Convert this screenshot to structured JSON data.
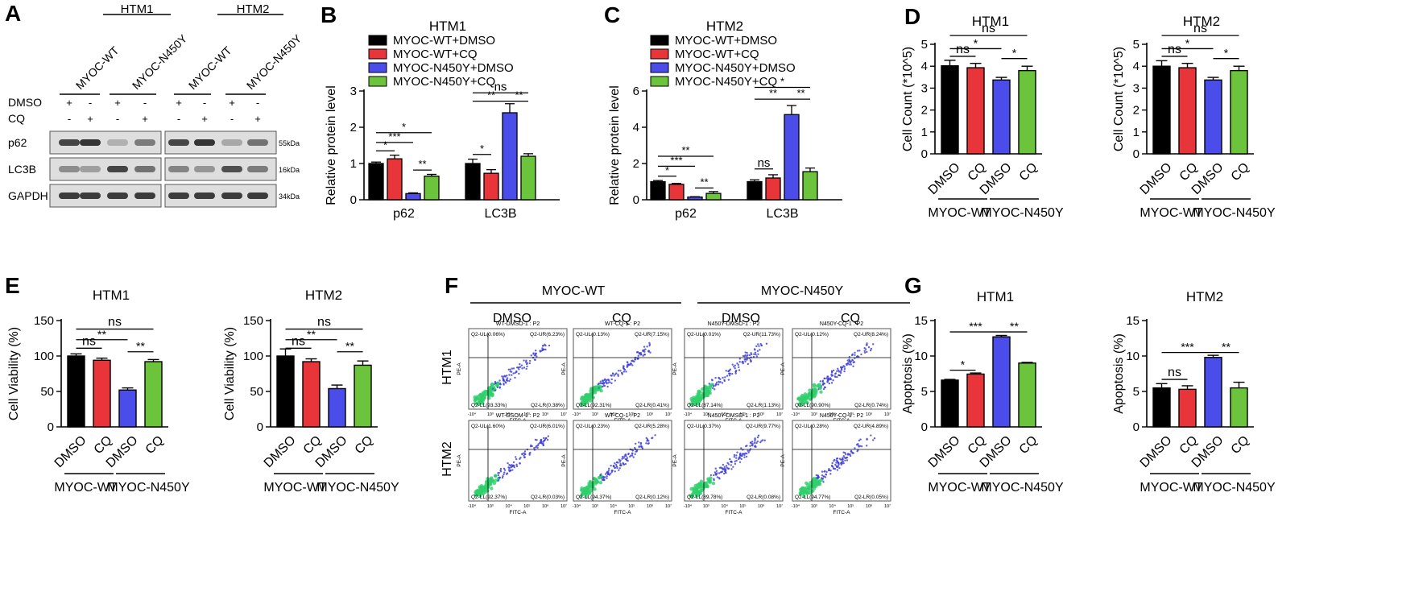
{
  "colors": {
    "black": "#000000",
    "red": "#e8353a",
    "blue": "#4b4dea",
    "green": "#6cc43c",
    "blot_bg": "#dedede",
    "band": "#2a2a2a",
    "dot_low": "#3b3bd6",
    "dot_high": "#2fd06b"
  },
  "panels": {
    "A": "A",
    "B": "B",
    "C": "C",
    "D": "D",
    "E": "E",
    "F": "F",
    "G": "G"
  },
  "panelA": {
    "groups": [
      "HTM1",
      "HTM2"
    ],
    "lanes": [
      "MYOC-WT",
      "MYOC-N450Y",
      "MYOC-WT",
      "MYOC-N450Y"
    ],
    "treat_rows": [
      {
        "label": "DMSO",
        "signs": [
          "+",
          "-",
          "+",
          "-",
          "+",
          "-",
          "+",
          "-"
        ]
      },
      {
        "label": "CQ",
        "signs": [
          "-",
          "+",
          "-",
          "+",
          "-",
          "+",
          "-",
          "+"
        ]
      }
    ],
    "blots": [
      {
        "label": "p62",
        "kda": "55kDa",
        "intensity": [
          0.85,
          0.95,
          0.25,
          0.55,
          0.85,
          0.95,
          0.3,
          0.6
        ]
      },
      {
        "label": "LC3B",
        "kda": "16kDa",
        "intensity": [
          0.45,
          0.35,
          0.85,
          0.6,
          0.5,
          0.4,
          0.8,
          0.55
        ]
      },
      {
        "label": "GAPDH",
        "kda": "34kDa",
        "intensity": [
          0.9,
          0.9,
          0.9,
          0.9,
          0.9,
          0.9,
          0.9,
          0.9
        ]
      }
    ]
  },
  "chart_data": [
    {
      "id": "B",
      "type": "bar",
      "title": "HTM1",
      "ylabel": "Relative protein level",
      "ylim": [
        0,
        3
      ],
      "yticks": [
        "0",
        "1",
        "2",
        "3"
      ],
      "legend": [
        "MYOC-WT+DMSO",
        "MYOC-WT+CQ",
        "MYOC-N450Y+DMSO",
        "MYOC-N450Y+CQ"
      ],
      "groups": [
        {
          "name": "p62",
          "values": [
            1.0,
            1.13,
            0.17,
            0.65
          ],
          "errors": [
            0.04,
            0.1,
            0.02,
            0.05
          ]
        },
        {
          "name": "LC3B",
          "values": [
            1.0,
            0.73,
            2.4,
            1.2
          ],
          "errors": [
            0.12,
            0.1,
            0.25,
            0.07
          ]
        }
      ],
      "brackets": [
        {
          "g": 0,
          "a": 0,
          "b": 1,
          "y": 1.35,
          "label": "*"
        },
        {
          "g": 0,
          "a": 0,
          "b": 2,
          "y": 1.58,
          "label": "***"
        },
        {
          "g": 0,
          "a": 0,
          "b": 3,
          "y": 1.85,
          "label": "*"
        },
        {
          "g": 0,
          "a": 2,
          "b": 3,
          "y": 0.82,
          "label": "**"
        },
        {
          "g": 1,
          "a": 0,
          "b": 1,
          "y": 1.25,
          "label": "*"
        },
        {
          "g": 1,
          "a": 0,
          "b": 2,
          "y": 2.72,
          "label": "**"
        },
        {
          "g": 1,
          "a": 0,
          "b": 3,
          "y": 2.95,
          "label": "ns"
        },
        {
          "g": 1,
          "a": 2,
          "b": 3,
          "y": 2.72,
          "label": "**"
        }
      ]
    },
    {
      "id": "C",
      "type": "bar",
      "title": "HTM2",
      "ylabel": "Relative protein level",
      "ylim": [
        0,
        6
      ],
      "yticks": [
        "0",
        "2",
        "4",
        "6"
      ],
      "legend": [
        "MYOC-WT+DMSO",
        "MYOC-WT+CQ",
        "MYOC-N450Y+DMSO",
        "MYOC-N450Y+CQ"
      ],
      "groups": [
        {
          "name": "p62",
          "values": [
            1.0,
            0.85,
            0.15,
            0.35
          ],
          "errors": [
            0.06,
            0.05,
            0.02,
            0.1
          ]
        },
        {
          "name": "LC3B",
          "values": [
            1.0,
            1.2,
            4.7,
            1.55
          ],
          "errors": [
            0.1,
            0.18,
            0.5,
            0.2
          ]
        }
      ],
      "brackets": [
        {
          "g": 0,
          "a": 0,
          "b": 1,
          "y": 1.3,
          "label": "*"
        },
        {
          "g": 0,
          "a": 0,
          "b": 2,
          "y": 1.85,
          "label": "***"
        },
        {
          "g": 0,
          "a": 0,
          "b": 3,
          "y": 2.4,
          "label": "**"
        },
        {
          "g": 0,
          "a": 2,
          "b": 3,
          "y": 0.65,
          "label": "**"
        },
        {
          "g": 1,
          "a": 0,
          "b": 1,
          "y": 1.7,
          "label": "ns"
        },
        {
          "g": 1,
          "a": 0,
          "b": 2,
          "y": 5.55,
          "label": "**"
        },
        {
          "g": 1,
          "a": 0,
          "b": 3,
          "y": 6.2,
          "label": "*"
        },
        {
          "g": 1,
          "a": 2,
          "b": 3,
          "y": 5.55,
          "label": "**"
        }
      ]
    },
    {
      "id": "D1",
      "type": "bar",
      "title": "HTM1",
      "ylabel": "Cell Count (*10^5)",
      "ylim": [
        0,
        5
      ],
      "yticks": [
        "0",
        "1",
        "2",
        "3",
        "4",
        "5"
      ],
      "categories": [
        "DMSO",
        "CQ",
        "DMSO",
        "CQ"
      ],
      "values": [
        4.02,
        3.93,
        3.37,
        3.8
      ],
      "errors": [
        0.25,
        0.2,
        0.12,
        0.2
      ],
      "group_labels": [
        "MYOC-WT",
        "MYOC-N450Y"
      ],
      "brackets": [
        {
          "a": 0,
          "b": 1,
          "y": 4.45,
          "label": "ns"
        },
        {
          "a": 0,
          "b": 2,
          "y": 4.8,
          "label": "*"
        },
        {
          "a": 0,
          "b": 3,
          "y": 5.4,
          "label": "ns"
        },
        {
          "a": 2,
          "b": 3,
          "y": 4.35,
          "label": "*"
        }
      ]
    },
    {
      "id": "D2",
      "type": "bar",
      "title": "HTM2",
      "ylabel": "Cell Count (*10^5)",
      "ylim": [
        0,
        5
      ],
      "yticks": [
        "0",
        "1",
        "2",
        "3",
        "4",
        "5"
      ],
      "categories": [
        "DMSO",
        "CQ",
        "DMSO",
        "CQ"
      ],
      "values": [
        4.0,
        3.93,
        3.37,
        3.8
      ],
      "errors": [
        0.25,
        0.2,
        0.12,
        0.2
      ],
      "group_labels": [
        "MYOC-WT",
        "MYOC-N450Y"
      ],
      "brackets": [
        {
          "a": 0,
          "b": 1,
          "y": 4.45,
          "label": "ns"
        },
        {
          "a": 0,
          "b": 2,
          "y": 4.8,
          "label": "*"
        },
        {
          "a": 0,
          "b": 3,
          "y": 5.4,
          "label": "ns"
        },
        {
          "a": 2,
          "b": 3,
          "y": 4.35,
          "label": "*"
        }
      ]
    },
    {
      "id": "E1",
      "type": "bar",
      "title": "HTM1",
      "ylabel": "Cell Viability (%)",
      "ylim": [
        0,
        150
      ],
      "yticks": [
        "0",
        "50",
        "100",
        "150"
      ],
      "categories": [
        "DMSO",
        "CQ",
        "DMSO",
        "CQ"
      ],
      "values": [
        100,
        94,
        52,
        92
      ],
      "errors": [
        3,
        3,
        3,
        3
      ],
      "group_labels": [
        "MYOC-WT",
        "MYOC-N450Y"
      ],
      "brackets": [
        {
          "a": 0,
          "b": 1,
          "y": 111,
          "label": "ns"
        },
        {
          "a": 0,
          "b": 2,
          "y": 123,
          "label": "**"
        },
        {
          "a": 0,
          "b": 3,
          "y": 138,
          "label": "ns"
        },
        {
          "a": 2,
          "b": 3,
          "y": 106,
          "label": "**"
        }
      ]
    },
    {
      "id": "E2",
      "type": "bar",
      "title": "HTM2",
      "ylabel": "Cell Viability (%)",
      "ylim": [
        0,
        150
      ],
      "yticks": [
        "0",
        "50",
        "100",
        "150"
      ],
      "categories": [
        "DMSO",
        "CQ",
        "DMSO",
        "CQ"
      ],
      "values": [
        100,
        92,
        54,
        87
      ],
      "errors": [
        10,
        4,
        5,
        6
      ],
      "group_labels": [
        "MYOC-WT",
        "MYOC-N450Y"
      ],
      "brackets": [
        {
          "a": 0,
          "b": 1,
          "y": 111,
          "label": "ns"
        },
        {
          "a": 0,
          "b": 2,
          "y": 123,
          "label": "**"
        },
        {
          "a": 0,
          "b": 3,
          "y": 138,
          "label": "ns"
        },
        {
          "a": 2,
          "b": 3,
          "y": 106,
          "label": "**"
        }
      ]
    },
    {
      "id": "G1",
      "type": "bar",
      "title": "HTM1",
      "ylabel": "Apoptosis (%)",
      "ylim": [
        0,
        15
      ],
      "yticks": [
        "0",
        "5",
        "10",
        "15"
      ],
      "categories": [
        "DMSO",
        "CQ",
        "DMSO",
        "CQ"
      ],
      "values": [
        6.6,
        7.45,
        12.7,
        9.0
      ],
      "errors": [
        0.1,
        0.15,
        0.2,
        0.1
      ],
      "group_labels": [
        "MYOC-WT",
        "MYOC-N450Y"
      ],
      "brackets": [
        {
          "a": 0,
          "b": 1,
          "y": 8.0,
          "label": "*"
        },
        {
          "a": 0,
          "b": 2,
          "y": 13.4,
          "label": "***"
        },
        {
          "a": 2,
          "b": 3,
          "y": 13.4,
          "label": "**"
        }
      ]
    },
    {
      "id": "G2",
      "type": "bar",
      "title": "HTM2",
      "ylabel": "Apoptosis (%)",
      "ylim": [
        0,
        15
      ],
      "yticks": [
        "0",
        "5",
        "10",
        "15"
      ],
      "categories": [
        "DMSO",
        "CQ",
        "DMSO",
        "CQ"
      ],
      "values": [
        5.5,
        5.3,
        9.8,
        5.5
      ],
      "errors": [
        0.6,
        0.5,
        0.3,
        0.8
      ],
      "group_labels": [
        "MYOC-WT",
        "MYOC-N450Y"
      ],
      "brackets": [
        {
          "a": 0,
          "b": 1,
          "y": 6.7,
          "label": "ns"
        },
        {
          "a": 0,
          "b": 2,
          "y": 10.5,
          "label": "***"
        },
        {
          "a": 2,
          "b": 3,
          "y": 10.5,
          "label": "**"
        }
      ]
    },
    {
      "id": "F",
      "type": "scatter",
      "col_groups": [
        "MYOC-WT",
        "MYOC-N450Y"
      ],
      "col_labels": [
        "DMSO",
        "CQ",
        "DMSO",
        "CQ"
      ],
      "row_labels": [
        "HTM1",
        "HTM2"
      ],
      "xlabel": "FITC-A",
      "ylabel": "PE-A",
      "ticks": [
        "-10⁴",
        "10³",
        "10⁴",
        "10⁵",
        "10⁶",
        "10⁷"
      ],
      "plots": [
        {
          "title": "WT-DMSO-1 : P2",
          "ul": "Q2-UL(0.06%)",
          "ur": "Q2-UR(6.23%)",
          "ll": "Q2-LL(93.33%)",
          "lr": "Q2-LR(0.38%)"
        },
        {
          "title": "WT-CQ-1 : P2",
          "ul": "Q2-UL(0.13%)",
          "ur": "Q2-UR(7.15%)",
          "ll": "Q2-LL(92.31%)",
          "lr": "Q2-LR(0.41%)"
        },
        {
          "title": "N450Y-DMSO-1 : P2",
          "ul": "Q2-UL(0.01%)",
          "ur": "Q2-UR(11.73%)",
          "ll": "Q2-LL(87.14%)",
          "lr": "Q2-LR(1.13%)"
        },
        {
          "title": "N450Y-CQ-1 : P2",
          "ul": "Q2-UL(0.12%)",
          "ur": "Q2-UR(8.24%)",
          "ll": "Q2-LL(90.90%)",
          "lr": "Q2-LR(0.74%)"
        },
        {
          "title": "WT-DSOM-1 : P2",
          "ul": "Q2-UL(1.60%)",
          "ur": "Q2-UR(6.01%)",
          "ll": "Q2-LL(92.37%)",
          "lr": "Q2-LR(0.03%)"
        },
        {
          "title": "WT-CQ-1 : P2",
          "ul": "Q2-UL(0.23%)",
          "ur": "Q2-UR(5.28%)",
          "ll": "Q2-LL(94.37%)",
          "lr": "Q2-LR(0.12%)"
        },
        {
          "title": "N450Y-DMSO-1 : P2",
          "ul": "Q2-UL(0.37%)",
          "ur": "Q2-UR(9.77%)",
          "ll": "Q2-LL(89.78%)",
          "lr": "Q2-LR(0.08%)"
        },
        {
          "title": "N450Y-CQ-1 : P2",
          "ul": "Q2-UL(0.28%)",
          "ur": "Q2-UR(4.89%)",
          "ll": "Q2-LL(94.77%)",
          "lr": "Q2-LR(0.05%)"
        }
      ]
    }
  ]
}
